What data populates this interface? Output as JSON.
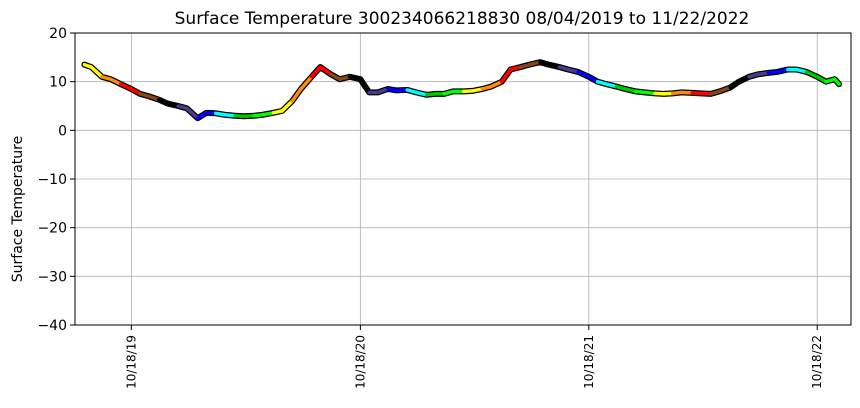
{
  "chart_data": {
    "type": "line",
    "title": "Surface Temperature 300234066218830  08/04/2019 to 11/22/2022",
    "xlabel": "",
    "ylabel": "Surface Temperature",
    "xlim": [
      "2019-07-20",
      "2022-12-11"
    ],
    "ylim": [
      -40,
      20
    ],
    "yticks": [
      20,
      10,
      0,
      -10,
      -20,
      -30,
      -40
    ],
    "xticks": [
      {
        "date": "2019-10-18",
        "label": "10/18/19"
      },
      {
        "date": "2020-10-18",
        "label": "10/18/20"
      },
      {
        "date": "2021-10-18",
        "label": "10/18/21"
      },
      {
        "date": "2022-10-18",
        "label": "10/18/22"
      }
    ],
    "grid": true,
    "legend": "none",
    "colormap": [
      "#ffff00",
      "#ff8c00",
      "#ff0000",
      "#8b4513",
      "#000000",
      "#483d8b",
      "#0000ff",
      "#00ffff",
      "#00c800",
      "#00ff00",
      "#ffff00",
      "#ff8c00",
      "#ff0000",
      "#8b4513",
      "#000000",
      "#483d8b",
      "#0000ff",
      "#00ffff",
      "#00c800",
      "#00ff00",
      "#ffff00",
      "#ff8c00",
      "#ff0000",
      "#8b4513",
      "#000000",
      "#483d8b",
      "#0000ff",
      "#00ffff",
      "#00c800",
      "#00ff00",
      "#ffff00",
      "#ff8c00",
      "#ff0000",
      "#8b4513",
      "#000000",
      "#483d8b",
      "#0000ff",
      "#00ffff",
      "#00c800",
      "#00ff00",
      "#ffff00",
      "#ff8c00",
      "#ff0000"
    ],
    "series": [
      {
        "x": [
          "2019-08-04",
          "2019-08-15",
          "2019-09-01",
          "2019-09-15",
          "2019-10-01",
          "2019-10-18",
          "2019-11-01",
          "2019-11-15",
          "2019-12-01",
          "2019-12-15",
          "2020-01-01",
          "2020-01-15",
          "2020-02-01",
          "2020-02-15",
          "2020-03-01",
          "2020-03-15",
          "2020-04-01",
          "2020-04-15",
          "2020-05-01",
          "2020-05-15",
          "2020-06-01",
          "2020-06-15",
          "2020-07-01",
          "2020-07-15",
          "2020-08-01",
          "2020-08-15",
          "2020-09-01",
          "2020-09-15",
          "2020-10-01",
          "2020-10-18",
          "2020-11-01",
          "2020-11-15",
          "2020-12-01",
          "2020-12-15",
          "2021-01-01",
          "2021-01-15",
          "2021-02-01",
          "2021-02-15",
          "2021-03-01",
          "2021-03-15",
          "2021-04-01",
          "2021-04-15",
          "2021-05-01",
          "2021-05-15",
          "2021-06-01",
          "2021-06-15",
          "2021-07-01",
          "2021-07-15",
          "2021-08-01",
          "2021-08-15",
          "2021-09-01",
          "2021-09-15",
          "2021-10-01",
          "2021-10-18",
          "2021-11-01",
          "2021-11-15",
          "2021-12-01",
          "2021-12-15",
          "2022-01-01",
          "2022-01-15",
          "2022-02-01",
          "2022-02-15",
          "2022-03-01",
          "2022-03-15",
          "2022-04-01",
          "2022-04-15",
          "2022-05-01",
          "2022-05-15",
          "2022-06-01",
          "2022-06-15",
          "2022-07-01",
          "2022-07-15",
          "2022-08-01",
          "2022-08-15",
          "2022-09-01",
          "2022-09-15",
          "2022-10-01",
          "2022-10-18",
          "2022-11-01",
          "2022-11-15",
          "2022-11-22"
        ],
        "y": [
          13.5,
          13.0,
          11.0,
          10.5,
          9.5,
          8.5,
          7.5,
          7.0,
          6.3,
          5.5,
          5.0,
          4.5,
          2.5,
          3.6,
          3.5,
          3.2,
          3.0,
          2.9,
          3.0,
          3.2,
          3.6,
          4.0,
          6.0,
          8.5,
          11.0,
          13.0,
          11.5,
          10.5,
          11.0,
          10.5,
          7.8,
          7.8,
          8.5,
          8.2,
          8.3,
          7.8,
          7.3,
          7.5,
          7.5,
          8.0,
          8.0,
          8.1,
          8.5,
          9.0,
          10.0,
          12.5,
          13.0,
          13.5,
          14.0,
          13.5,
          13.0,
          12.5,
          12.0,
          11.0,
          10.0,
          9.5,
          9.0,
          8.5,
          8.0,
          7.8,
          7.6,
          7.5,
          7.6,
          7.8,
          7.7,
          7.6,
          7.5,
          8.0,
          8.8,
          10.0,
          11.0,
          11.5,
          11.8,
          12.0,
          12.5,
          12.5,
          12.0,
          11.0,
          10.0,
          10.5,
          9.5
        ]
      }
    ]
  }
}
